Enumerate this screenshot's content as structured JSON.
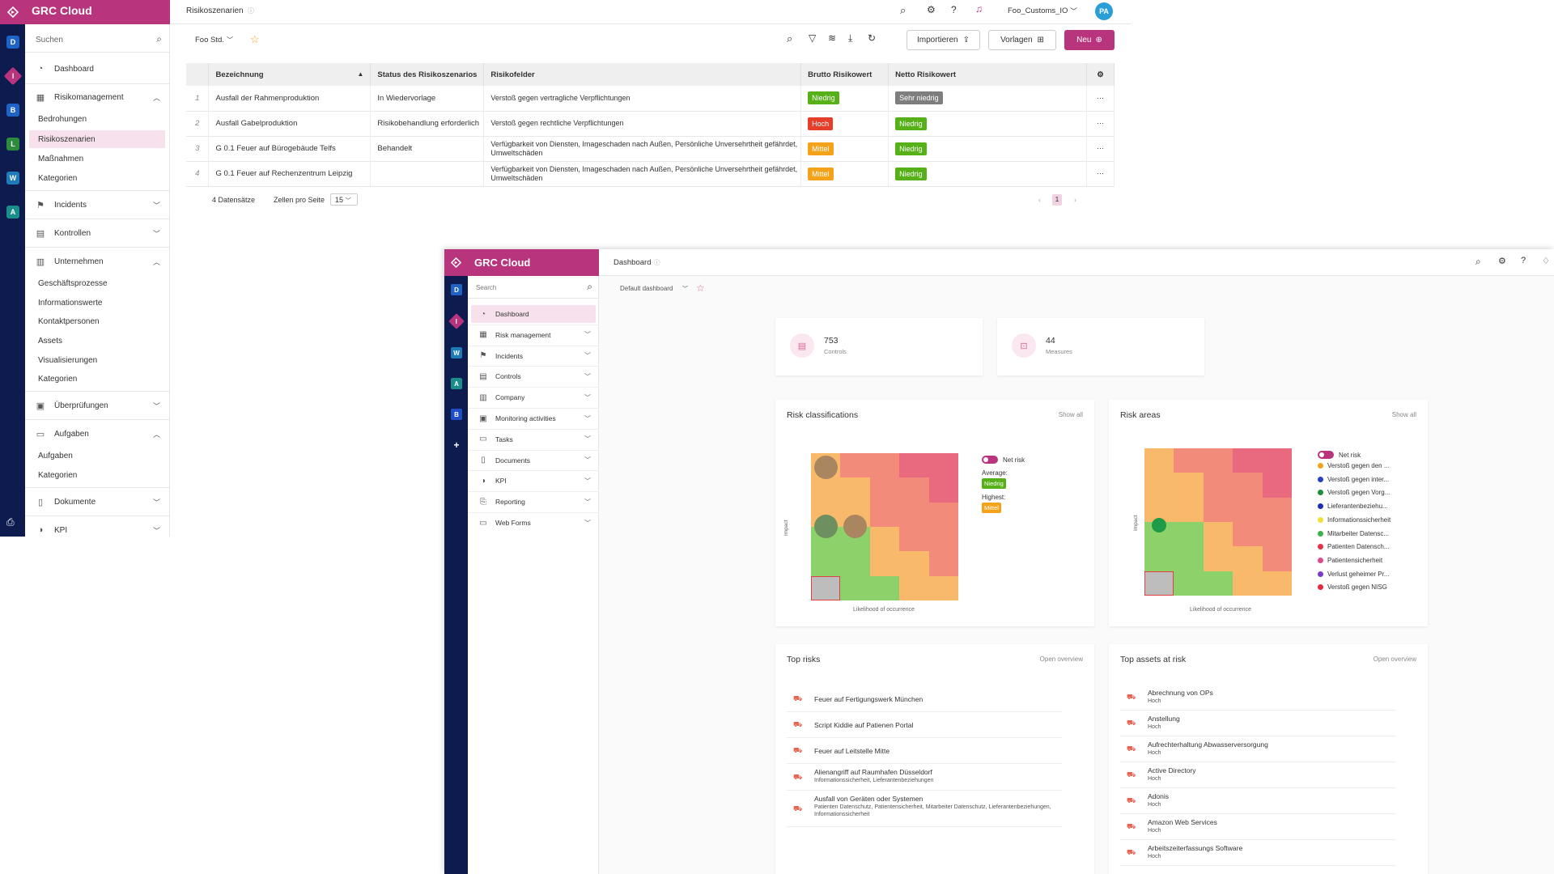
{
  "app1": {
    "brand": "GRC Cloud",
    "page_title": "Risikoszenarien",
    "tenant": "Foo_Customs_IO",
    "avatar": "PA",
    "workspaces": [
      "D",
      "I",
      "B",
      "L",
      "W",
      "A"
    ],
    "search_placeholder": "Suchen",
    "nav": {
      "dashboard": "Dashboard",
      "risikomanagement": "Risikomanagement",
      "risk_sub": [
        "Bedrohungen",
        "Risikoszenarien",
        "Maßnahmen",
        "Kategorien"
      ],
      "incidents": "Incidents",
      "kontrollen": "Kontrollen",
      "unternehmen": "Unternehmen",
      "unt_sub": [
        "Geschäftsprozesse",
        "Informationswerte",
        "Kontaktpersonen",
        "Assets",
        "Visualisierungen",
        "Kategorien"
      ],
      "ueberpruefungen": "Überprüfungen",
      "aufgaben": "Aufgaben",
      "auf_sub": [
        "Aufgaben",
        "Kategorien"
      ],
      "dokumente": "Dokumente",
      "kpi": "KPI"
    },
    "toolbar": {
      "filter_preset": "Foo Std.",
      "import_label": "Importieren",
      "templates_label": "Vorlagen",
      "new_label": "Neu"
    },
    "table": {
      "headers": [
        "Bezeichnung",
        "Status des Risikoszenarios",
        "Risikofelder",
        "Brutto Risikowert",
        "Netto Risikowert"
      ],
      "rows": [
        {
          "n": "1",
          "name": "Ausfall der Rahmenproduktion",
          "status": "In Wiedervorlage",
          "fields": "Verstoß gegen vertragliche Verpflichtungen",
          "brutto": "Niedrig",
          "netto": "Sehr niedrig"
        },
        {
          "n": "2",
          "name": "Ausfall Gabelproduktion",
          "status": "Risikobehandlung erforderlich",
          "fields": "Verstoß gegen rechtliche Verpflichtungen",
          "brutto": "Hoch",
          "netto": "Niedrig"
        },
        {
          "n": "3",
          "name": "G 0.1 Feuer auf Bürogebäude Telfs",
          "status": "Behandelt",
          "fields": "Verfügbarkeit von Diensten, Imageschaden nach Außen, Persönliche Unversehrtheit gefährdet, Umweltschäden",
          "brutto": "Mittel",
          "netto": "Niedrig"
        },
        {
          "n": "4",
          "name": "G 0.1 Feuer auf Rechenzentrum Leipzig",
          "status": "",
          "fields": "Verfügbarkeit von Diensten, Imageschaden nach Außen, Persönliche Unversehrtheit gefährdet, Umweltschäden",
          "brutto": "Mittel",
          "netto": "Niedrig"
        }
      ]
    },
    "footer": {
      "count": "4 Datensätze",
      "per_page_label": "Zellen pro Seite",
      "per_page": "15",
      "page": "1"
    }
  },
  "app2": {
    "brand": "GRC Cloud",
    "page_title": "Dashboard",
    "workspaces": [
      "D",
      "I",
      "W",
      "A",
      "B",
      "+"
    ],
    "search_placeholder": "Search",
    "dashboard_select": "Default dashboard",
    "nav": [
      "Dashboard",
      "Risk management",
      "Incidents",
      "Controls",
      "Company",
      "Monitoring activities",
      "Tasks",
      "Documents",
      "KPI",
      "Reporting",
      "Web Forms"
    ],
    "stats": [
      {
        "value": "753",
        "label": "Controls"
      },
      {
        "value": "44",
        "label": "Measures"
      }
    ],
    "risk_classifications": {
      "title": "Risk classifications",
      "link": "Show all",
      "toggle_label": "Net risk",
      "average_label": "Average:",
      "average_value": "Niedrig",
      "highest_label": "Highest:",
      "highest_value": "Mittel",
      "x_label": "Likelihood of occurrence",
      "y_label": "Impact"
    },
    "risk_areas": {
      "title": "Risk areas",
      "link": "Show all",
      "toggle_label": "Net risk",
      "x_label": "Likelihood of occurrence",
      "y_label": "Impact",
      "legend": [
        {
          "label": "Verstoß gegen den ...",
          "color": "#f5a21b"
        },
        {
          "label": "Verstoß gegen inter...",
          "color": "#2542c8"
        },
        {
          "label": "Verstoß gegen Vorg...",
          "color": "#1f8f3a"
        },
        {
          "label": "Lieferantenbeziehu...",
          "color": "#1b2fb0"
        },
        {
          "label": "Informationssicherheit",
          "color": "#f0e03a"
        },
        {
          "label": "Mitarbeiter Datensc...",
          "color": "#3cb44b"
        },
        {
          "label": "Patienten Datensch...",
          "color": "#e6324b"
        },
        {
          "label": "Patientensicherheit",
          "color": "#e04a8a"
        },
        {
          "label": "Verlust geheimer Pr...",
          "color": "#7a3cc8"
        },
        {
          "label": "Verstoß gegen NISG",
          "color": "#e8283c"
        }
      ]
    },
    "top_risks": {
      "title": "Top risks",
      "link": "Open overview",
      "items": [
        {
          "title": "Feuer auf Fertigungswerk München",
          "sub": ""
        },
        {
          "title": "Script Kiddie auf Patienen Portal",
          "sub": ""
        },
        {
          "title": "Feuer auf Leitstelle Mitte",
          "sub": ""
        },
        {
          "title": "Alienangriff auf Raumhafen Düsseldorf",
          "sub": "Informationssicherheit, Lieferantenbeziehungen"
        },
        {
          "title": "Ausfall von Geräten oder Systemen",
          "sub": "Patienten Datenschutz, Patientensicherheit, Mitarbeiter Datenschutz, Lieferantenbeziehungen, Informationssicherheit"
        }
      ]
    },
    "top_assets": {
      "title": "Top assets at risk",
      "link": "Open overview",
      "items": [
        {
          "title": "Abrechnung von OPs",
          "sub": "Hoch"
        },
        {
          "title": "Anstellung",
          "sub": "Hoch"
        },
        {
          "title": "Aufrechterhaltung Abwasserversorgung",
          "sub": "Hoch"
        },
        {
          "title": "Active Directory",
          "sub": "Hoch"
        },
        {
          "title": "Adonis",
          "sub": "Hoch"
        },
        {
          "title": "Amazon Web Services",
          "sub": "Hoch"
        },
        {
          "title": "Arbeitszeiterfassungs Software",
          "sub": "Hoch"
        }
      ]
    }
  }
}
